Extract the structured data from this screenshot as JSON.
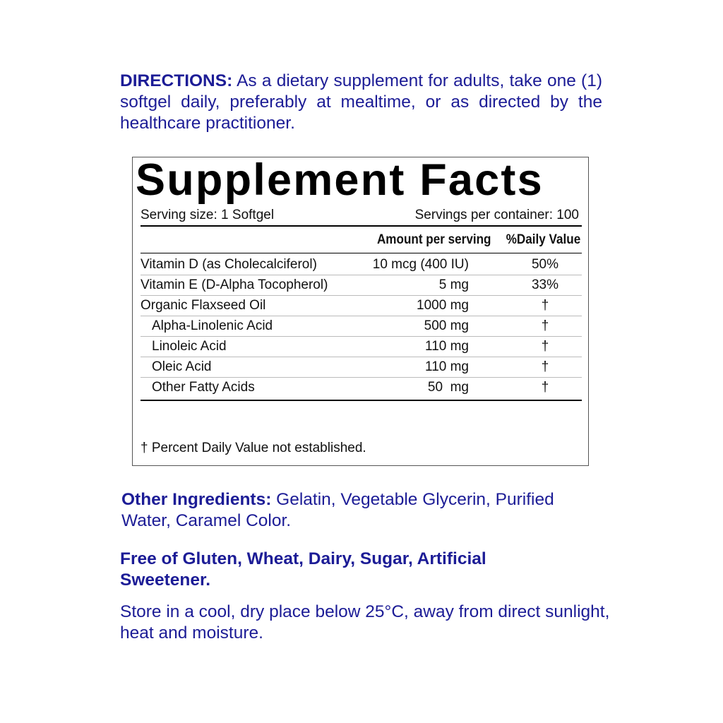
{
  "directions": {
    "label": "DIRECTIONS:",
    "text": " As a dietary supplement for adults, take one (1) softgel daily, preferably at mealtime, or as directed by the healthcare practitioner."
  },
  "facts": {
    "title": "Supplement Facts",
    "serving_size": "Serving size: 1 Softgel",
    "servings_per_container": "Servings per container: 100",
    "col_amount": "Amount per serving",
    "col_dv": "%Daily Value",
    "rows": [
      {
        "name": "Vitamin D (as Cholecalciferol)",
        "amount": "10 mcg (400 IU)",
        "dv": "50%"
      },
      {
        "name": "Vitamin E (D-Alpha Tocopherol)",
        "amount": "5 mg",
        "dv": "33%"
      },
      {
        "name": "Organic Flaxseed Oil",
        "amount": "1000 mg",
        "dv": "†"
      },
      {
        "name": "Alpha-Linolenic Acid",
        "amount": "500 mg",
        "dv": "†"
      },
      {
        "name": "Linoleic Acid",
        "amount": "110 mg",
        "dv": "†"
      },
      {
        "name": "Oleic Acid",
        "amount": "110 mg",
        "dv": "†"
      },
      {
        "name": "Other Fatty Acids",
        "amount": "50  mg",
        "dv": "†"
      }
    ],
    "footnote": "† Percent Daily Value not established."
  },
  "other_ingredients": {
    "label": "Other Ingredients:",
    "text": " Gelatin, Vegetable Glycerin, Purified Water, Caramel Color."
  },
  "free_of": "Free of Gluten, Wheat, Dairy, Sugar, Artificial Sweetener.",
  "storage": "Store in a cool, dry place below 25°C, away from direct sunlight, heat and moisture.",
  "colors": {
    "text_blue": "#1c1c96",
    "text_black": "#111111"
  }
}
